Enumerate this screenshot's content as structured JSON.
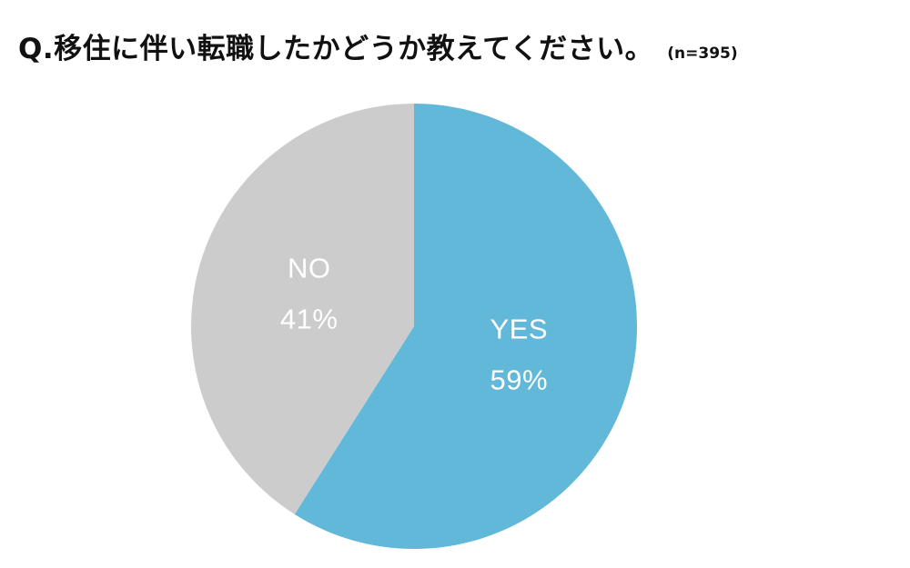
{
  "title": {
    "question": "Q.移住に伴い転職したかどうか教えてください。",
    "sample_size": "(n=395)"
  },
  "chart_data": {
    "type": "pie",
    "title": "Q.移住に伴い転職したかどうか教えてください。",
    "subtitle": "(n=395)",
    "categories": [
      "YES",
      "NO"
    ],
    "values": [
      59,
      41
    ],
    "labels": [
      "59%",
      "41%"
    ],
    "colors": [
      "#62B8D9",
      "#CCCCCC"
    ],
    "start_angle": "12 o'clock",
    "direction": "clockwise",
    "legend": "none"
  }
}
